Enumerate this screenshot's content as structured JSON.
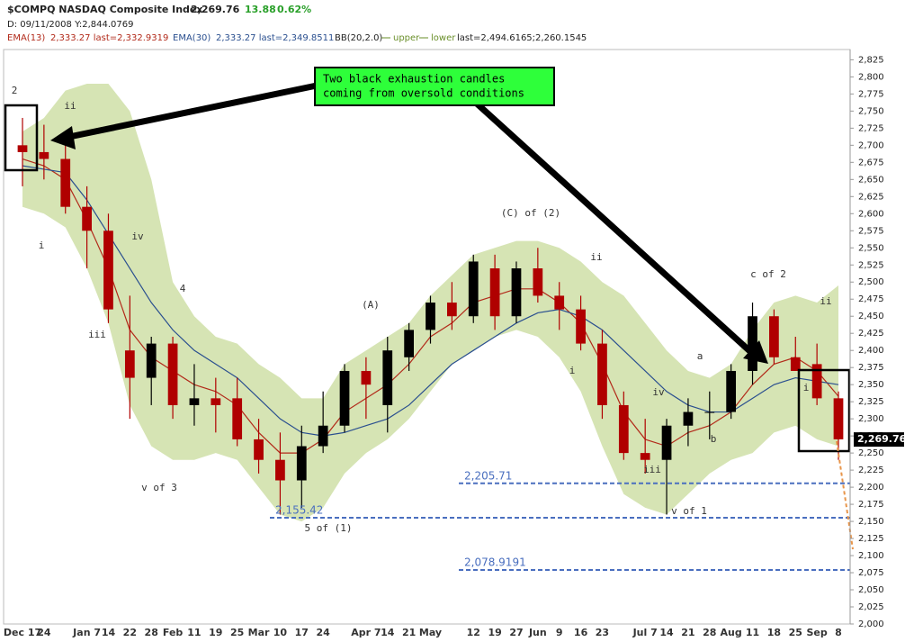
{
  "header": {
    "symbol": "$COMPQ NASDAQ Composite Index",
    "price": "2,269.76",
    "change": "13.88",
    "change_pct": "0.62%",
    "date_line": "D: 09/11/2008 Y:2,844.0769",
    "ema13_name": "EMA(13)",
    "ema13_text": "2,333.27 last=2,332.9319",
    "ema30_name": "EMA(30)",
    "ema30_text": "2,333.27 last=2,349.8511",
    "bb_name": "BB(20,2.0)",
    "bb_upper": "upper",
    "bb_lower": "lower",
    "bb_last": "last=2,494.6165;2,260.1545"
  },
  "chart_data": {
    "type": "candlestick",
    "categories": [
      "Dec 17",
      "24",
      null,
      "Jan 7",
      "14",
      "22",
      "28",
      "Feb",
      "11",
      "19",
      "25",
      "Mar",
      "10",
      "17",
      "24",
      null,
      "Apr 7",
      "14",
      "21",
      "May",
      null,
      "12",
      "19",
      "27",
      "Jun",
      "9",
      "16",
      "23",
      null,
      "Jul 7",
      "14",
      "21",
      "28",
      "Aug",
      "11",
      "18",
      "25",
      "Sep",
      "8"
    ],
    "open": [
      2700,
      2690,
      2680,
      2610,
      2575,
      2400,
      2360,
      2410,
      2320,
      2330,
      2330,
      2270,
      2240,
      2210,
      2260,
      2290,
      2370,
      2320,
      2390,
      2430,
      2470,
      2450,
      2520,
      2450,
      2520,
      2480,
      2460,
      2410,
      2320,
      2250,
      2240,
      2290,
      2310,
      2310,
      2370,
      2450,
      2390,
      2380,
      2330
    ],
    "high": [
      2740,
      2730,
      2700,
      2640,
      2600,
      2480,
      2420,
      2420,
      2380,
      2360,
      2360,
      2300,
      2280,
      2290,
      2340,
      2380,
      2390,
      2420,
      2440,
      2480,
      2500,
      2540,
      2540,
      2530,
      2550,
      2500,
      2480,
      2430,
      2340,
      2300,
      2300,
      2330,
      2340,
      2380,
      2470,
      2460,
      2420,
      2410,
      2340
    ],
    "low": [
      2640,
      2650,
      2600,
      2520,
      2440,
      2300,
      2320,
      2300,
      2290,
      2280,
      2260,
      2220,
      2160,
      2170,
      2250,
      2280,
      2300,
      2280,
      2370,
      2410,
      2430,
      2440,
      2430,
      2440,
      2470,
      2430,
      2400,
      2300,
      2240,
      2220,
      2160,
      2260,
      2270,
      2300,
      2350,
      2380,
      2370,
      2320,
      2240
    ],
    "close": [
      2690,
      2680,
      2610,
      2575,
      2460,
      2360,
      2410,
      2320,
      2330,
      2320,
      2270,
      2240,
      2210,
      2260,
      2290,
      2370,
      2350,
      2400,
      2430,
      2470,
      2450,
      2530,
      2450,
      2520,
      2480,
      2460,
      2410,
      2320,
      2250,
      2240,
      2290,
      2310,
      2310,
      2370,
      2450,
      2390,
      2370,
      2330,
      2270
    ],
    "up_color": "#000000",
    "down_color": "#b00000",
    "band_color": "#d6e4b4",
    "series": [
      {
        "name": "EMA(13)",
        "color": "#b22a1a",
        "values": [
          2680,
          2670,
          2650,
          2590,
          2520,
          2430,
          2390,
          2370,
          2350,
          2340,
          2320,
          2280,
          2250,
          2250,
          2270,
          2310,
          2330,
          2350,
          2380,
          2420,
          2440,
          2470,
          2480,
          2490,
          2490,
          2470,
          2440,
          2380,
          2310,
          2270,
          2260,
          2280,
          2290,
          2310,
          2350,
          2380,
          2390,
          2370,
          2333
        ]
      },
      {
        "name": "EMA(30)",
        "color": "#2a4f8f",
        "values": [
          2670,
          2665,
          2660,
          2620,
          2570,
          2520,
          2470,
          2430,
          2400,
          2380,
          2360,
          2330,
          2300,
          2280,
          2275,
          2280,
          2290,
          2300,
          2320,
          2350,
          2380,
          2400,
          2420,
          2440,
          2455,
          2460,
          2450,
          2430,
          2400,
          2370,
          2340,
          2320,
          2310,
          2310,
          2330,
          2350,
          2360,
          2355,
          2350
        ]
      },
      {
        "name": "upper",
        "values": [
          2720,
          2740,
          2780,
          2790,
          2790,
          2750,
          2650,
          2500,
          2450,
          2420,
          2410,
          2380,
          2360,
          2330,
          2330,
          2380,
          2400,
          2420,
          2440,
          2480,
          2510,
          2540,
          2550,
          2560,
          2560,
          2550,
          2530,
          2500,
          2480,
          2440,
          2400,
          2370,
          2360,
          2380,
          2430,
          2470,
          2480,
          2470,
          2495
        ]
      },
      {
        "name": "lower",
        "values": [
          2610,
          2600,
          2580,
          2520,
          2440,
          2320,
          2260,
          2240,
          2240,
          2250,
          2240,
          2200,
          2160,
          2150,
          2170,
          2220,
          2250,
          2270,
          2300,
          2340,
          2380,
          2400,
          2420,
          2430,
          2420,
          2390,
          2340,
          2260,
          2190,
          2170,
          2160,
          2190,
          2220,
          2240,
          2250,
          2280,
          2290,
          2270,
          2260
        ]
      }
    ],
    "ylim": [
      2000,
      2840
    ],
    "yticks": [
      {
        "value": 2000,
        "label": "2,000"
      },
      {
        "value": 2025,
        "label": "2,025"
      },
      {
        "value": 2050,
        "label": "2,050"
      },
      {
        "value": 2075,
        "label": "2,075"
      },
      {
        "value": 2100,
        "label": "2,100"
      },
      {
        "value": 2125,
        "label": "2,125"
      },
      {
        "value": 2150,
        "label": "2,150"
      },
      {
        "value": 2175,
        "label": "2,175"
      },
      {
        "value": 2200,
        "label": "2,200"
      },
      {
        "value": 2225,
        "label": "2,225"
      },
      {
        "value": 2250,
        "label": "2,250"
      },
      {
        "value": 2275,
        "label": "2,275"
      },
      {
        "value": 2300,
        "label": "2,300"
      },
      {
        "value": 2325,
        "label": "2,325"
      },
      {
        "value": 2350,
        "label": "2,350"
      },
      {
        "value": 2375,
        "label": "2,375"
      },
      {
        "value": 2400,
        "label": "2,400"
      },
      {
        "value": 2425,
        "label": "2,425"
      },
      {
        "value": 2450,
        "label": "2,450"
      },
      {
        "value": 2475,
        "label": "2,475"
      },
      {
        "value": 2500,
        "label": "2,500"
      },
      {
        "value": 2525,
        "label": "2,525"
      },
      {
        "value": 2550,
        "label": "2,550"
      },
      {
        "value": 2575,
        "label": "2,575"
      },
      {
        "value": 2600,
        "label": "2,600"
      },
      {
        "value": 2625,
        "label": "2,625"
      },
      {
        "value": 2650,
        "label": "2,650"
      },
      {
        "value": 2675,
        "label": "2,675"
      },
      {
        "value": 2700,
        "label": "2,700"
      },
      {
        "value": 2725,
        "label": "2,725"
      },
      {
        "value": 2750,
        "label": "2,750"
      },
      {
        "value": 2775,
        "label": "2,775"
      },
      {
        "value": 2800,
        "label": "2,800"
      },
      {
        "value": 2825,
        "label": "2,825"
      }
    ],
    "levels": [
      {
        "value": 2205.71,
        "label": "2,205.71"
      },
      {
        "value": 2155.42,
        "label": "2,155.42"
      },
      {
        "value": 2078.9191,
        "label": "2,078.9191"
      }
    ],
    "level_color": "#4a6fbf",
    "last_tag": {
      "value": 2269.76,
      "label": "2,269.76"
    },
    "annotations": [
      "2",
      "ii",
      "i",
      "iv",
      "4",
      "iii",
      "v of 3",
      "5 of (1)",
      "(A)",
      "(C) of (2)",
      "ii",
      "i",
      "iv",
      "iii",
      "v of 1",
      "a",
      "b",
      "c of 2",
      "ii",
      "i"
    ],
    "callout": [
      "Two black exhaustion candles",
      "coming from oversold conditions"
    ]
  }
}
